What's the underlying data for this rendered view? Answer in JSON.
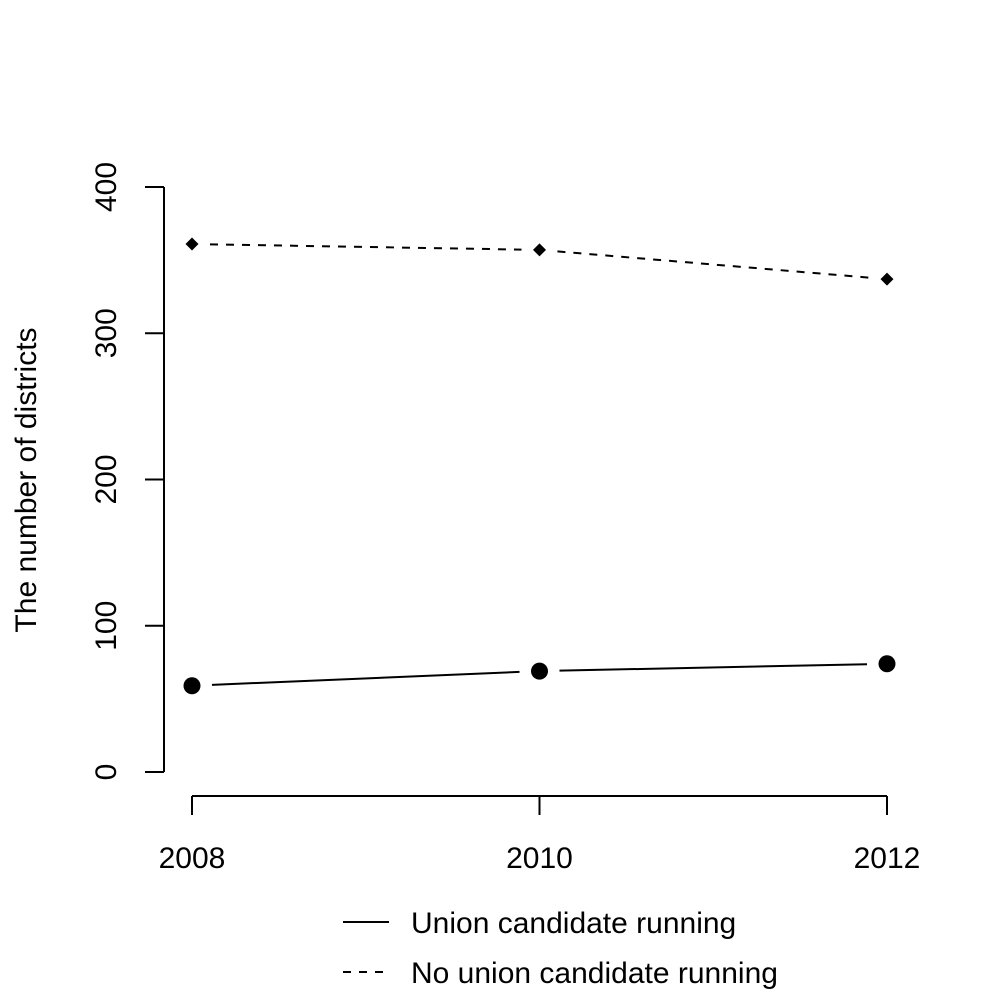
{
  "chart_data": {
    "type": "line",
    "x": [
      2008,
      2010,
      2012
    ],
    "xlim": [
      2008,
      2012
    ],
    "ylim": [
      0,
      400
    ],
    "xticks": [
      "2008",
      "2010",
      "2012"
    ],
    "yticks": [
      "0",
      "100",
      "200",
      "300",
      "400"
    ],
    "xlabel": "",
    "ylabel": "The number of districts",
    "grid": false,
    "legend_position": "bottom",
    "series": [
      {
        "name": "Union candidate running",
        "values": [
          59,
          69,
          74
        ],
        "line_style": "solid",
        "marker": "circle",
        "color": "#000000"
      },
      {
        "name": "No union candidate running",
        "values": [
          361,
          357,
          337
        ],
        "line_style": "dashed",
        "marker": "diamond",
        "color": "#000000"
      }
    ]
  }
}
